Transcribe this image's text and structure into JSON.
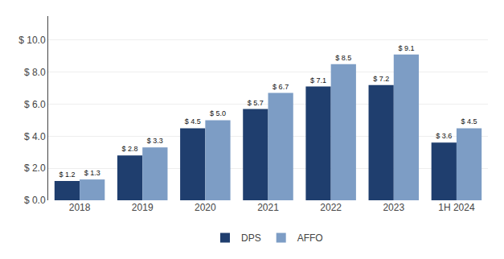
{
  "chart_data": {
    "type": "bar",
    "categories": [
      "2018",
      "2019",
      "2020",
      "2021",
      "2022",
      "2023",
      "1H 2024"
    ],
    "series": [
      {
        "name": "DPS",
        "color": "#1f3e6e",
        "values": [
          1.2,
          2.8,
          4.5,
          5.7,
          7.1,
          7.2,
          3.6
        ],
        "value_labels": [
          "$ 1.2",
          "$ 2.8",
          "$ 4.5",
          "$ 5.7",
          "$ 7.1",
          "$ 7.2",
          "$ 3.6"
        ]
      },
      {
        "name": "AFFO",
        "color": "#7d9dc5",
        "values": [
          1.3,
          3.3,
          5.0,
          6.7,
          8.5,
          9.1,
          4.5
        ],
        "value_labels": [
          "$ 1.3",
          "$ 3.3",
          "$ 5.0",
          "$ 6.7",
          "$ 8.5",
          "$ 9.1",
          "$ 4.5"
        ]
      }
    ],
    "ylim": [
      0,
      11.5
    ],
    "yticks": [
      {
        "value": 0.0,
        "label": "$ 0.0"
      },
      {
        "value": 2.0,
        "label": "$ 2.0"
      },
      {
        "value": 4.0,
        "label": "$ 4.0"
      },
      {
        "value": 6.0,
        "label": "$ 6.0"
      },
      {
        "value": 8.0,
        "label": "$ 8.0"
      },
      {
        "value": 10.0,
        "label": "$ 10.0"
      }
    ],
    "grid": true,
    "legend": "bottom",
    "data_labels": true
  }
}
